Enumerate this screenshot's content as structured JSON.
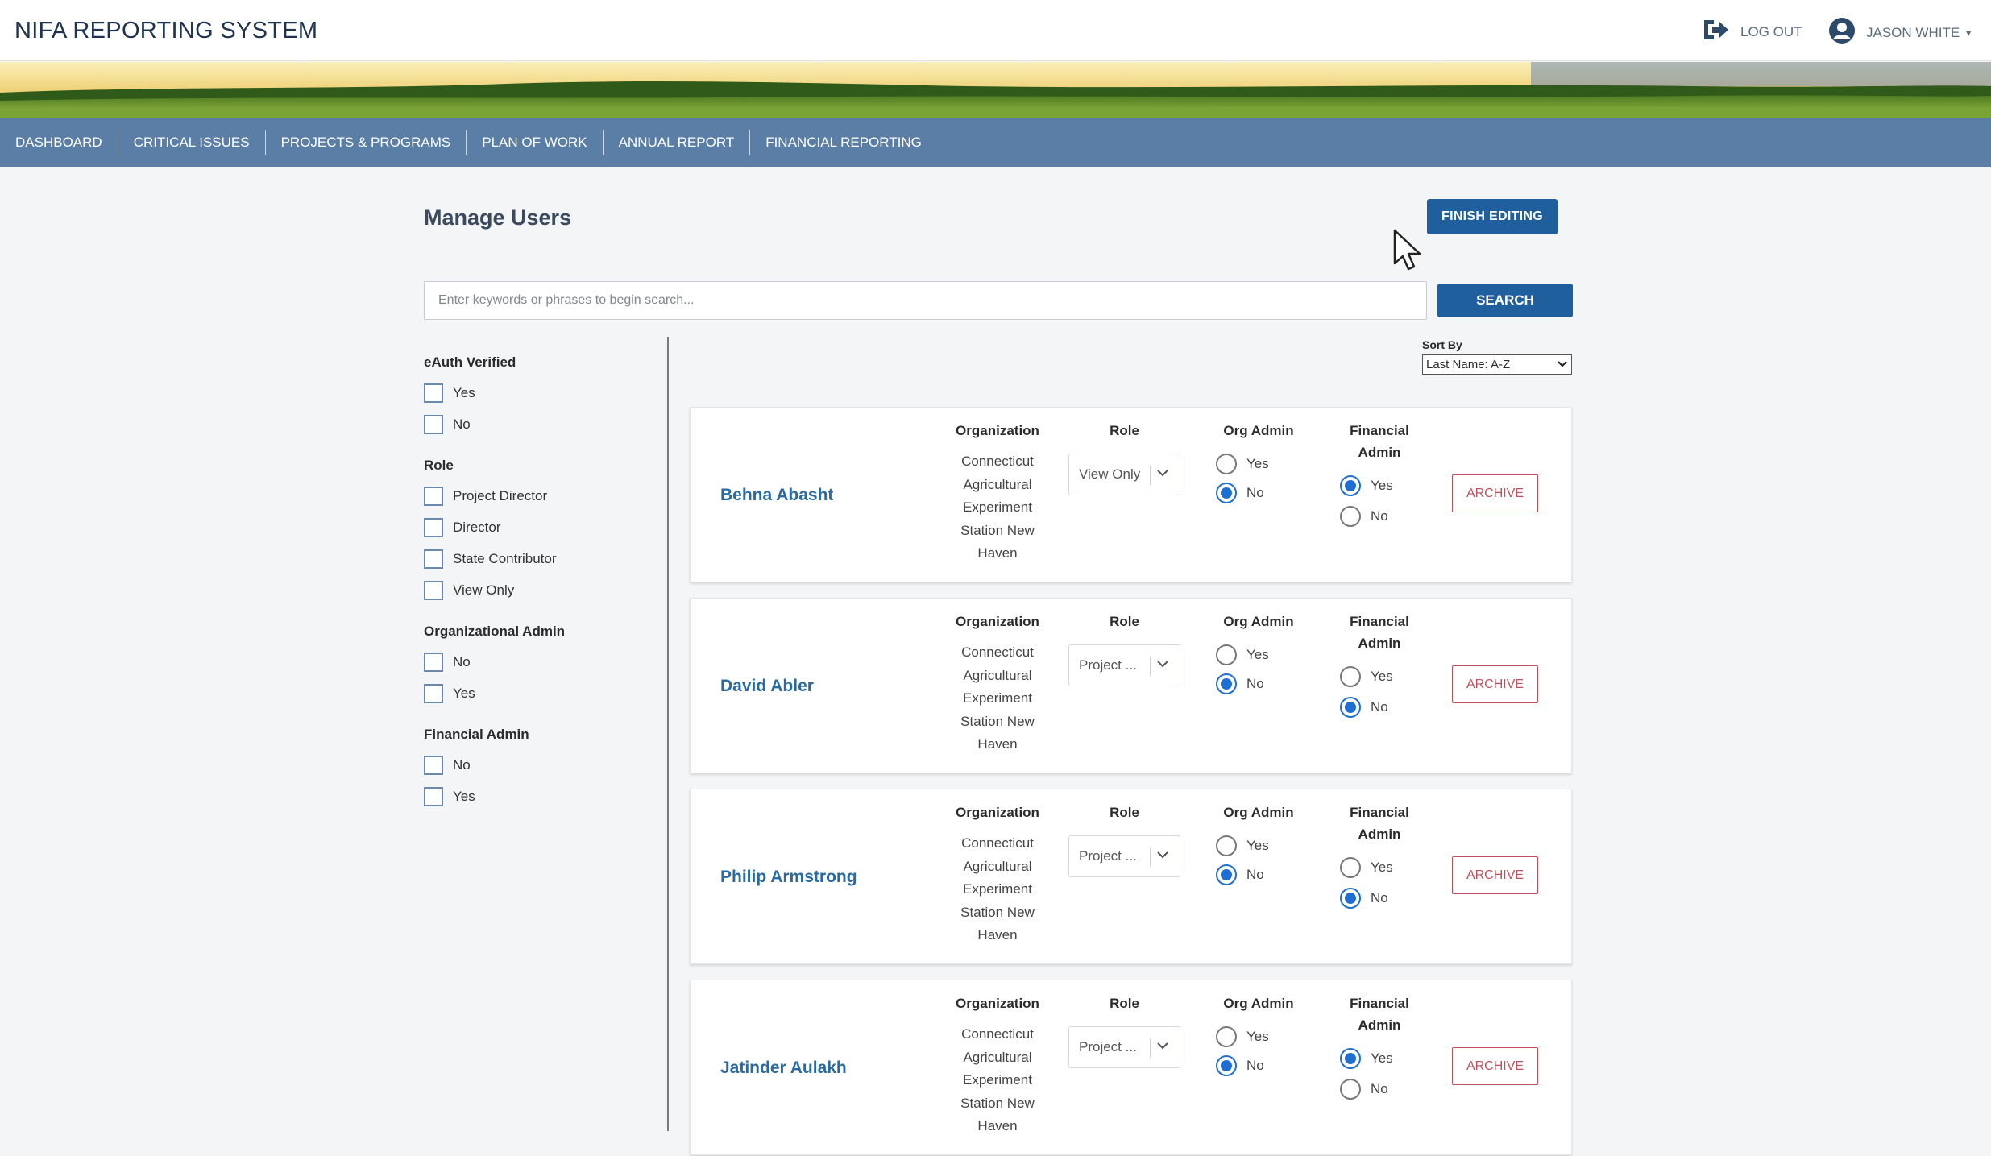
{
  "header": {
    "app_title": "NIFA REPORTING SYSTEM",
    "logout_label": "LOG OUT",
    "user_name": "JASON WHITE"
  },
  "nav": [
    {
      "label": "DASHBOARD"
    },
    {
      "label": "CRITICAL ISSUES"
    },
    {
      "label": "PROJECTS & PROGRAMS"
    },
    {
      "label": "PLAN OF WORK"
    },
    {
      "label": "ANNUAL REPORT"
    },
    {
      "label": "FINANCIAL REPORTING"
    }
  ],
  "main": {
    "title": "Manage Users",
    "finish_label": "FINISH EDITING",
    "search_placeholder": "Enter keywords or phrases to begin search...",
    "search_label": "SEARCH",
    "sort_label": "Sort By",
    "sort_value": "Last Name: A-Z"
  },
  "filters": [
    {
      "title": "eAuth Verified",
      "options": [
        "Yes",
        "No"
      ]
    },
    {
      "title": "Role",
      "options": [
        "Project Director",
        "Director",
        "State Contributor",
        "View Only"
      ]
    },
    {
      "title": "Organizational Admin",
      "options": [
        "No",
        "Yes"
      ]
    },
    {
      "title": "Financial Admin",
      "options": [
        "No",
        "Yes"
      ]
    }
  ],
  "columns": {
    "organization": "Organization",
    "role": "Role",
    "org_admin": "Org Admin",
    "financial_admin_line1": "Financial",
    "financial_admin_line2": "Admin",
    "yes": "Yes",
    "no": "No",
    "archive": "ARCHIVE"
  },
  "users": [
    {
      "name": "Behna Abasht",
      "organization": "Connecticut Agricultural Experiment Station New Haven",
      "role": "View Only",
      "org_admin": "No",
      "financial_admin": "Yes"
    },
    {
      "name": "David Abler",
      "organization": "Connecticut Agricultural Experiment Station New Haven",
      "role": "Project ...",
      "org_admin": "No",
      "financial_admin": "No"
    },
    {
      "name": "Philip Armstrong",
      "organization": "Connecticut Agricultural Experiment Station New Haven",
      "role": "Project ...",
      "org_admin": "No",
      "financial_admin": "No"
    },
    {
      "name": "Jatinder Aulakh",
      "organization": "Connecticut Agricultural Experiment Station New Haven",
      "role": "Project ...",
      "org_admin": "No",
      "financial_admin": "Yes"
    }
  ],
  "colors": {
    "primary": "#1f5f9e",
    "nav": "#5a7ea6",
    "link": "#2a6aa2",
    "archive": "#c0505b",
    "radio": "#1f6fd1"
  },
  "icons": [
    "logout-icon",
    "user-avatar-icon",
    "chevron-down-icon",
    "mouse-cursor-icon"
  ]
}
